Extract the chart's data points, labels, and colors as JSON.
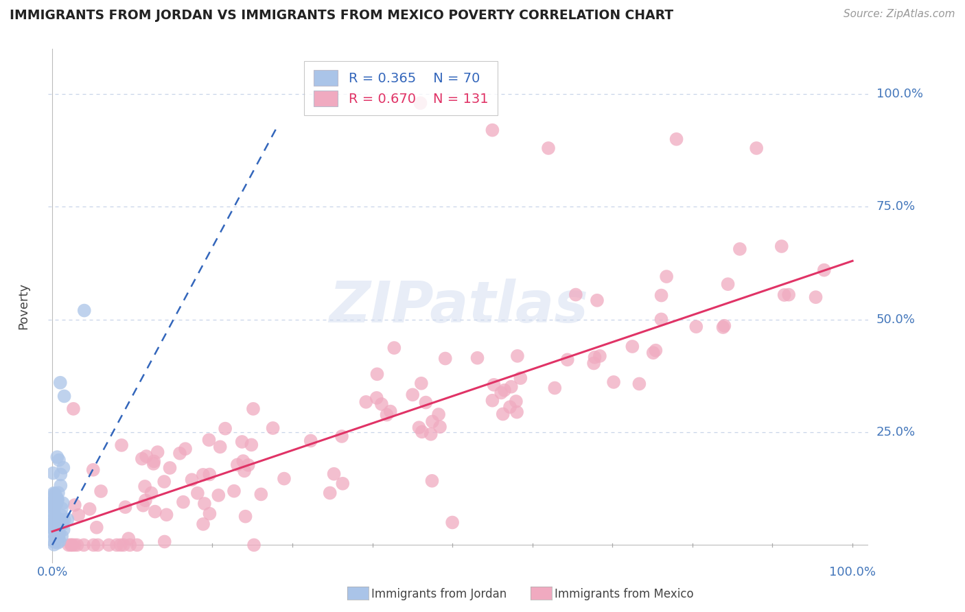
{
  "title": "IMMIGRANTS FROM JORDAN VS IMMIGRANTS FROM MEXICO POVERTY CORRELATION CHART",
  "source": "Source: ZipAtlas.com",
  "ylabel": "Poverty",
  "jordan_R": 0.365,
  "jordan_N": 70,
  "mexico_R": 0.67,
  "mexico_N": 131,
  "jordan_color": "#aac4e8",
  "mexico_color": "#f0aac0",
  "jordan_line_color": "#3366bb",
  "mexico_line_color": "#e03366",
  "background_color": "#ffffff",
  "grid_color": "#c8d4e8",
  "label_color": "#4477bb",
  "watermark": "ZIPatlas",
  "title_color": "#222222",
  "source_color": "#999999",
  "ylabel_color": "#444444"
}
